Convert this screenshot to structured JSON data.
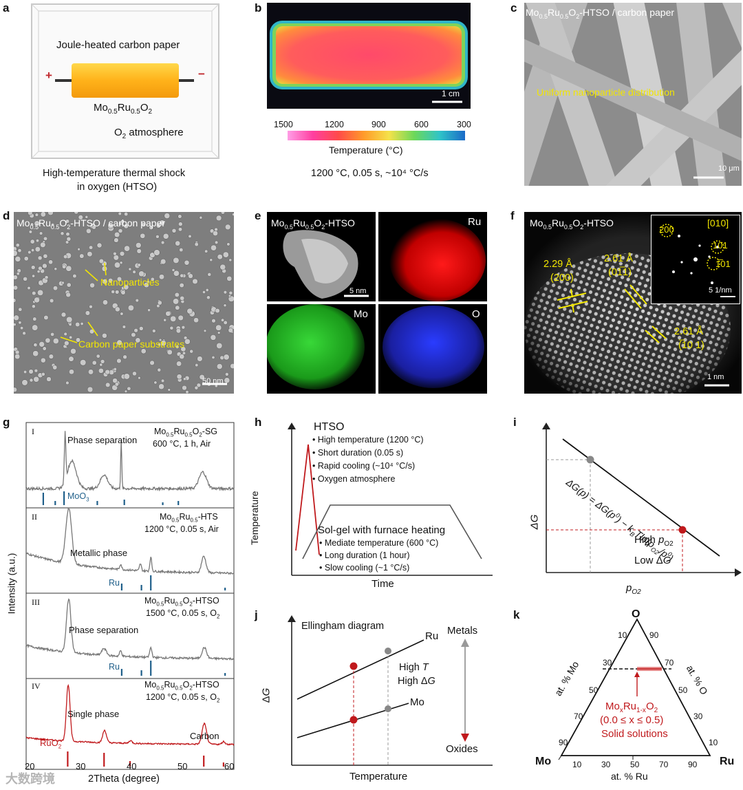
{
  "panels": {
    "a": {
      "label": "a",
      "heater_title": "Joule-heated carbon paper",
      "plus": "+",
      "minus": "−",
      "material": "Mo0.5Ru0.5O2",
      "atmosphere": "O2 atmosphere",
      "caption_line1": "High-temperature thermal shock",
      "caption_line2": "in oxygen (HTSO)"
    },
    "b": {
      "label": "b",
      "scale": "1 cm",
      "ticks": [
        "1500",
        "1200",
        "900",
        "600",
        "300"
      ],
      "colorbar_title": "Temperature (°C)",
      "caption": "1200 °C, 0.05 s, ~10⁴ °C/s"
    },
    "c": {
      "label": "c",
      "title": "Mo0.5Ru0.5O2-HTSO / carbon paper",
      "annotation": "Uniform nanoparticle distribution",
      "scale": "10 μm"
    },
    "d": {
      "label": "d",
      "title": "Mo0.5Ru0.5O2-HTSO / carbon paper",
      "annotation1": "Nanoparticles",
      "annotation2": "Carbon paper substrates",
      "scale": "50 nm"
    },
    "e": {
      "label": "e",
      "title": "Mo0.5Ru0.5O2-HTSO",
      "ru": "Ru",
      "mo": "Mo",
      "o": "O",
      "scale": "5 nm"
    },
    "f": {
      "label": "f",
      "title": "Mo0.5Ru0.5O2-HTSO",
      "d1": "2.29 Å",
      "d1hkl": "(200)",
      "d2": "2.61 Å",
      "d2hkl": "(01̅1)",
      "d3": "2.61 Å",
      "d3hkl": "(̅10 1)",
      "inset_zone": "[010]",
      "inset_s1": "200",
      "inset_s2": "101",
      "inset_s3": "1̅01",
      "inset_scale": "5 1/nm",
      "scale": "1 nm"
    },
    "g": {
      "label": "g",
      "ylabel": "Intensity (a.u.)",
      "xlabel": "2Theta (degree)",
      "xticks": [
        "20",
        "30",
        "40",
        "50",
        "60"
      ],
      "sub": [
        {
          "roman": "I",
          "title": "Mo0.5Ru0.5O2-SG",
          "cond": "600 °C, 1 h, Air",
          "note": "Phase separation",
          "ref": "MoO3"
        },
        {
          "roman": "II",
          "title": "Mo0.5Ru0.5-HTS",
          "cond": "1200 °C, 0.05 s, Air",
          "note": "Metallic phase",
          "ref": "Ru"
        },
        {
          "roman": "III",
          "title": "Mo0.5Ru0.5O2-HTSO",
          "cond": "1500 °C, 0.05 s, O2",
          "note": "Phase separation",
          "ref": "Ru"
        },
        {
          "roman": "IV",
          "title": "Mo0.5Ru0.5O2-HTSO",
          "cond": "1200 °C, 0.05 s, O2",
          "note": "Single phase",
          "ref": "RuO2",
          "extra": "Carbon"
        }
      ]
    },
    "h": {
      "label": "h",
      "ylabel": "Temperature",
      "xlabel": "Time",
      "htso_title": "HTSO",
      "htso_items": [
        "• High temperature (1200 °C)",
        "• Short duration (0.05 s)",
        "• Rapid cooling (~10⁴ °C/s)",
        "• Oxygen atmosphere"
      ],
      "sg_title": "Sol-gel with furnace heating",
      "sg_items": [
        "• Mediate temperature (600 °C)",
        "• Long duration (1 hour)",
        "• Slow cooling (~1 °C/s)"
      ]
    },
    "i": {
      "label": "i",
      "ylabel": "ΔG",
      "xlabel": "pO2",
      "equation": "ΔG(p) = ΔG(p⁰) − kBTln(pO2/p⁰)",
      "high": "High pO2",
      "low": "Low ΔG"
    },
    "j": {
      "label": "j",
      "title": "Ellingham diagram",
      "ylabel": "ΔG",
      "xlabel": "Temperature",
      "ru": "Ru",
      "mo": "Mo",
      "hight": "High T",
      "highg": "High ΔG",
      "metals": "Metals",
      "oxides": "Oxides"
    },
    "k": {
      "label": "k",
      "o": "O",
      "mo": "Mo",
      "ru": "Ru",
      "left_axis": "at. % Mo",
      "right_axis": "at. % O",
      "bottom_axis": "at. % Ru",
      "ticks_left": [
        "90",
        "70",
        "50",
        "30",
        "10"
      ],
      "ticks_right": [
        "90",
        "70",
        "50",
        "30",
        "10"
      ],
      "ticks_bottom": [
        "10",
        "30",
        "50",
        "70",
        "90"
      ],
      "formula": "MoxRu1-xO2",
      "range": "(0.0 ≤ x ≤ 0.5)",
      "solid": "Solid solutions"
    }
  },
  "watermark": "大数跨境"
}
